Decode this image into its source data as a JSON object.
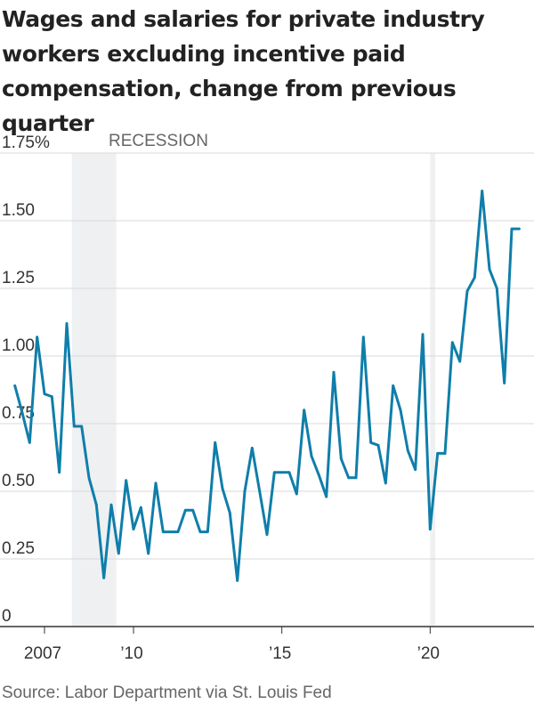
{
  "title": "Wages and salaries for private industry workers excluding incentive paid compensation, change from previous quarter",
  "source": "Source: Labor Department via St. Louis Fed",
  "recession_label": "RECESSION",
  "colors": {
    "line": "#0f7eaa",
    "shade": "#eff0f2",
    "grid": "#d9d9d9",
    "axis": "#333333"
  },
  "chart_data": {
    "type": "line",
    "title": "Wages and salaries for private industry workers excluding incentive paid compensation, change from previous quarter",
    "ylabel": "",
    "xlabel": "",
    "ylim": [
      0,
      1.75
    ],
    "xlim": [
      2005.5,
      2023.5
    ],
    "yticks": [
      0,
      0.25,
      0.5,
      0.75,
      1.0,
      1.25,
      1.5,
      1.75
    ],
    "ytick_labels": [
      "0",
      "0.25",
      "0.50",
      "0.75",
      "1.00",
      "1.25",
      "1.50",
      "1.75%"
    ],
    "xticks": [
      2007,
      2010,
      2015,
      2020
    ],
    "xtick_labels": [
      "2007",
      "’10",
      "’15",
      "’20"
    ],
    "grid": true,
    "shaded_periods": [
      {
        "label": "RECESSION",
        "start": 2007.92,
        "end": 2009.42
      },
      {
        "label": "",
        "start": 2020.0,
        "end": 2020.17
      }
    ],
    "series": [
      {
        "x": [
          2006.0,
          2006.25,
          2006.5,
          2006.75,
          2007.0,
          2007.25,
          2007.5,
          2007.75,
          2008.0,
          2008.25,
          2008.5,
          2008.75,
          2009.0,
          2009.25,
          2009.5,
          2009.75,
          2010.0,
          2010.25,
          2010.5,
          2010.75,
          2011.0,
          2011.25,
          2011.5,
          2011.75,
          2012.0,
          2012.25,
          2012.5,
          2012.75,
          2013.0,
          2013.25,
          2013.5,
          2013.75,
          2014.0,
          2014.25,
          2014.5,
          2014.75,
          2015.0,
          2015.25,
          2015.5,
          2015.75,
          2016.0,
          2016.25,
          2016.5,
          2016.75,
          2017.0,
          2017.25,
          2017.5,
          2017.75,
          2018.0,
          2018.25,
          2018.5,
          2018.75,
          2019.0,
          2019.25,
          2019.5,
          2019.75,
          2020.0,
          2020.25,
          2020.5,
          2020.75,
          2021.0,
          2021.25,
          2021.5,
          2021.75,
          2022.0,
          2022.25,
          2022.5,
          2022.75,
          2023.0
        ],
        "values": [
          0.89,
          0.79,
          0.68,
          1.07,
          0.86,
          0.85,
          0.57,
          1.12,
          0.74,
          0.74,
          0.55,
          0.45,
          0.18,
          0.45,
          0.27,
          0.54,
          0.36,
          0.44,
          0.27,
          0.53,
          0.35,
          0.35,
          0.35,
          0.43,
          0.43,
          0.35,
          0.35,
          0.68,
          0.51,
          0.42,
          0.17,
          0.5,
          0.66,
          0.5,
          0.34,
          0.57,
          0.57,
          0.57,
          0.49,
          0.8,
          0.63,
          0.56,
          0.48,
          0.94,
          0.62,
          0.55,
          0.55,
          1.07,
          0.68,
          0.67,
          0.53,
          0.89,
          0.8,
          0.65,
          0.58,
          1.08,
          0.36,
          0.64,
          0.64,
          1.05,
          0.98,
          1.24,
          1.29,
          1.61,
          1.32,
          1.25,
          0.9,
          1.47,
          1.47
        ]
      }
    ]
  }
}
